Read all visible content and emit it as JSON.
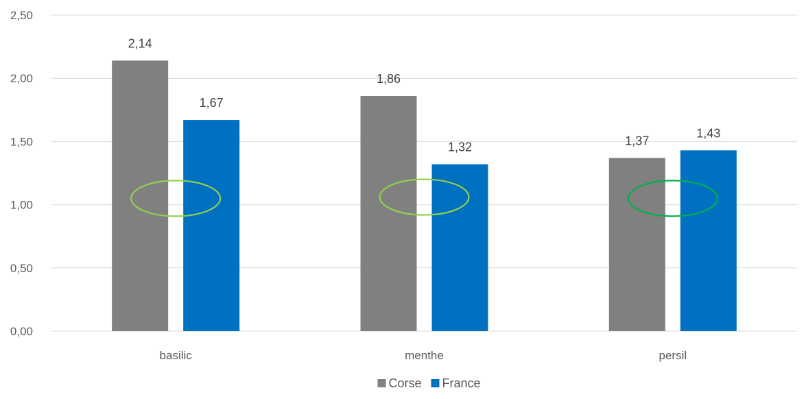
{
  "chart_data": {
    "type": "bar",
    "title": "",
    "xlabel": "",
    "ylabel": "",
    "categories": [
      "basilic",
      "menthe",
      "persil"
    ],
    "series": [
      {
        "name": "Corse",
        "color": "#808080",
        "values": [
          2.14,
          1.86,
          1.37
        ],
        "labels": [
          "2,14",
          "1,86",
          "1,37"
        ]
      },
      {
        "name": "France",
        "color": "#0070c0",
        "values": [
          1.67,
          1.32,
          1.43
        ],
        "labels": [
          "1,67",
          "1,32",
          "1,43"
        ]
      }
    ],
    "ylim": [
      0,
      2.5
    ],
    "yticks": [
      0,
      0.5,
      1.0,
      1.5,
      2.0,
      2.5
    ],
    "ytick_labels": [
      "0,00",
      "0,50",
      "1,00",
      "1,50",
      "2,00",
      "2,50"
    ],
    "grid": true,
    "legend_position": "bottom-center",
    "annotations": [
      {
        "type": "ellipse",
        "category": "basilic",
        "y": 1.05,
        "color": "#92d050"
      },
      {
        "type": "ellipse",
        "category": "menthe",
        "y": 1.06,
        "color": "#92d050"
      },
      {
        "type": "ellipse",
        "category": "persil",
        "y": 1.05,
        "color": "#00b050"
      }
    ]
  }
}
